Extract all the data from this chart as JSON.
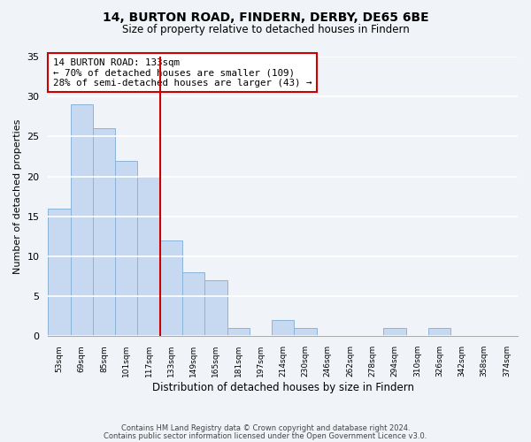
{
  "title": "14, BURTON ROAD, FINDERN, DERBY, DE65 6BE",
  "subtitle": "Size of property relative to detached houses in Findern",
  "xlabel": "Distribution of detached houses by size in Findern",
  "ylabel": "Number of detached properties",
  "bin_labels": [
    "53sqm",
    "69sqm",
    "85sqm",
    "101sqm",
    "117sqm",
    "133sqm",
    "149sqm",
    "165sqm",
    "181sqm",
    "197sqm",
    "214sqm",
    "230sqm",
    "246sqm",
    "262sqm",
    "278sqm",
    "294sqm",
    "310sqm",
    "326sqm",
    "342sqm",
    "358sqm",
    "374sqm"
  ],
  "bar_heights": [
    16,
    29,
    26,
    22,
    20,
    12,
    8,
    7,
    1,
    0,
    2,
    1,
    0,
    0,
    0,
    1,
    0,
    1,
    0,
    0,
    0
  ],
  "bar_color": "#c6d9f0",
  "bar_edge_color": "#8ab4d8",
  "vline_x_index": 5,
  "vline_color": "#cc0000",
  "annotation_title": "14 BURTON ROAD: 133sqm",
  "annotation_line1": "← 70% of detached houses are smaller (109)",
  "annotation_line2": "28% of semi-detached houses are larger (43) →",
  "annotation_box_color": "#ffffff",
  "annotation_box_edge": "#cc0000",
  "ylim": [
    0,
    35
  ],
  "yticks": [
    0,
    5,
    10,
    15,
    20,
    25,
    30,
    35
  ],
  "footer1": "Contains HM Land Registry data © Crown copyright and database right 2024.",
  "footer2": "Contains public sector information licensed under the Open Government Licence v3.0.",
  "background_color": "#f0f4f8",
  "grid_color": "#ffffff",
  "spine_color": "#aaaaaa"
}
